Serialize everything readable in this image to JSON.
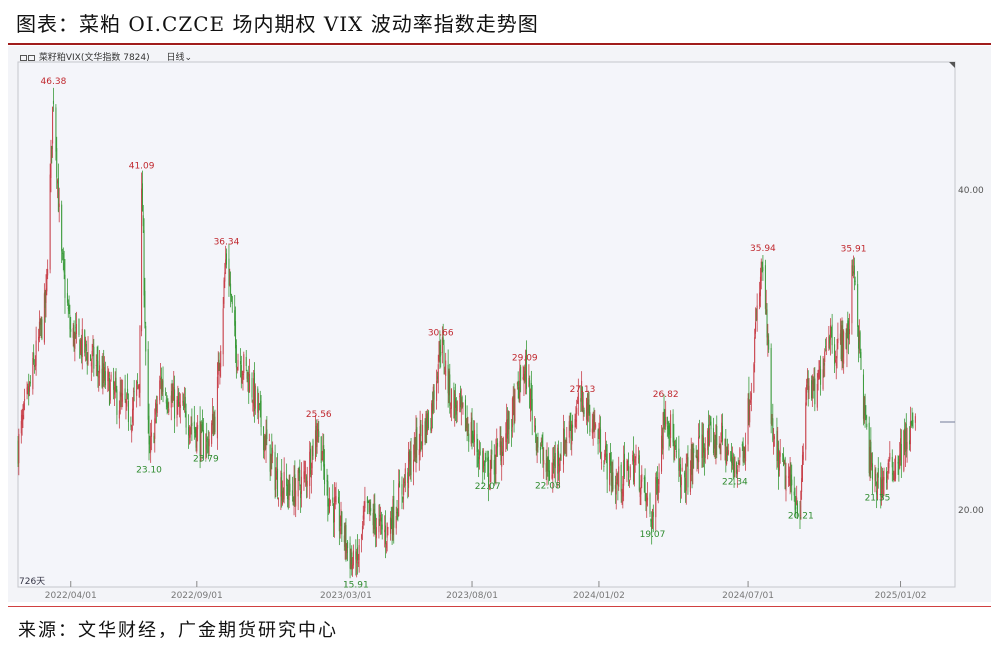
{
  "title": "图表：菜粕 OI.CZCE 场内期权  VIX 波动率指数走势图",
  "legend": {
    "name": "菜籽粕VIX(文华指数 7824)",
    "period": "日线",
    "dropdown_icon": "chevron-down-icon"
  },
  "source": "来源：文华财经，广金期货研究中心",
  "chart_data": {
    "type": "candlestick",
    "title": "",
    "ylabel": "",
    "xlabel": "",
    "ylim": [
      13.5,
      46.8
    ],
    "xlim": [
      "2022-01-27",
      "2025-01-22"
    ],
    "y_ticks": [
      20,
      40
    ],
    "y_tick_labels": [
      "20.00",
      "40.00"
    ],
    "x_ticks": [
      "2022/04/01",
      "2022/09/01",
      "2023/03/01",
      "2023/08/01",
      "2024/01/02",
      "2024/07/01",
      "2025/01/02"
    ],
    "day_count_label": "726天",
    "last_value_marker": 25.5,
    "grid": false,
    "colors": {
      "up": "#c8404a",
      "down": "#3a9a3a",
      "peak_label": "#c0282e",
      "trough_label": "#2e8b2e"
    },
    "path": [
      [
        "2022-01-27",
        24
      ],
      [
        "2022-02-10",
        27.5
      ],
      [
        "2022-03-02",
        33
      ],
      [
        "2022-03-11",
        46.38
      ],
      [
        "2022-03-20",
        36
      ],
      [
        "2022-04-01",
        31
      ],
      [
        "2022-04-19",
        30
      ],
      [
        "2022-05-07",
        28.5
      ],
      [
        "2022-05-26",
        27
      ],
      [
        "2022-06-13",
        26
      ],
      [
        "2022-06-23",
        28
      ],
      [
        "2022-06-26",
        41.09
      ],
      [
        "2022-07-01",
        30
      ],
      [
        "2022-07-05",
        23.1
      ],
      [
        "2022-07-19",
        28
      ],
      [
        "2022-08-06",
        26.5
      ],
      [
        "2022-08-25",
        25.5
      ],
      [
        "2022-09-12",
        23.79
      ],
      [
        "2022-09-24",
        26
      ],
      [
        "2022-10-07",
        36.34
      ],
      [
        "2022-10-18",
        30
      ],
      [
        "2022-11-05",
        28
      ],
      [
        "2022-11-20",
        25
      ],
      [
        "2022-12-06",
        22
      ],
      [
        "2022-12-24",
        21
      ],
      [
        "2023-01-11",
        22
      ],
      [
        "2023-01-27",
        25.56
      ],
      [
        "2023-02-04",
        21.5
      ],
      [
        "2023-02-23",
        19
      ],
      [
        "2023-03-13",
        15.91
      ],
      [
        "2023-03-25",
        20
      ],
      [
        "2023-04-18",
        18.5
      ],
      [
        "2023-05-06",
        21
      ],
      [
        "2023-05-25",
        24
      ],
      [
        "2023-06-12",
        26
      ],
      [
        "2023-06-24",
        30.66
      ],
      [
        "2023-07-06",
        27
      ],
      [
        "2023-07-30",
        25
      ],
      [
        "2023-08-20",
        22.07
      ],
      [
        "2023-09-05",
        24
      ],
      [
        "2023-09-17",
        25.5
      ],
      [
        "2023-10-04",
        29.09
      ],
      [
        "2023-10-17",
        25
      ],
      [
        "2023-11-01",
        22.08
      ],
      [
        "2023-11-23",
        24.5
      ],
      [
        "2023-12-13",
        27.13
      ],
      [
        "2023-12-29",
        25
      ],
      [
        "2024-01-22",
        21.5
      ],
      [
        "2024-02-16",
        23
      ],
      [
        "2024-03-07",
        19.07
      ],
      [
        "2024-03-23",
        26.82
      ],
      [
        "2024-04-10",
        21.5
      ],
      [
        "2024-05-05",
        24
      ],
      [
        "2024-05-29",
        24.5
      ],
      [
        "2024-06-15",
        22.34
      ],
      [
        "2024-06-28",
        24.5
      ],
      [
        "2024-07-19",
        35.94
      ],
      [
        "2024-07-31",
        24
      ],
      [
        "2024-08-16",
        22
      ],
      [
        "2024-09-03",
        20.21
      ],
      [
        "2024-09-10",
        28
      ],
      [
        "2024-09-21",
        27
      ],
      [
        "2024-10-07",
        31.5
      ],
      [
        "2024-10-15",
        30
      ],
      [
        "2024-10-31",
        31
      ],
      [
        "2024-11-06",
        35.91
      ],
      [
        "2024-11-17",
        27
      ],
      [
        "2024-11-27",
        22.5
      ],
      [
        "2024-12-05",
        21.35
      ],
      [
        "2024-12-27",
        23
      ],
      [
        "2025-01-20",
        25.5
      ]
    ],
    "annotations": [
      {
        "date": "2022-03-11",
        "value": 46.38,
        "label": "46.38",
        "kind": "peak"
      },
      {
        "date": "2022-06-26",
        "value": 41.09,
        "label": "41.09",
        "kind": "peak"
      },
      {
        "date": "2022-07-05",
        "value": 23.1,
        "label": "23.10",
        "kind": "trough"
      },
      {
        "date": "2022-09-12",
        "value": 23.79,
        "label": "23.79",
        "kind": "trough"
      },
      {
        "date": "2022-10-07",
        "value": 36.34,
        "label": "36.34",
        "kind": "peak"
      },
      {
        "date": "2023-01-27",
        "value": 25.56,
        "label": "25.56",
        "kind": "peak"
      },
      {
        "date": "2023-03-13",
        "value": 15.91,
        "label": "15.91",
        "kind": "trough"
      },
      {
        "date": "2023-06-24",
        "value": 30.66,
        "label": "30.66",
        "kind": "peak"
      },
      {
        "date": "2023-08-20",
        "value": 22.07,
        "label": "22.07",
        "kind": "trough"
      },
      {
        "date": "2023-10-04",
        "value": 29.09,
        "label": "29.09",
        "kind": "peak"
      },
      {
        "date": "2023-11-01",
        "value": 22.08,
        "label": "22.08",
        "kind": "trough"
      },
      {
        "date": "2023-12-13",
        "value": 27.13,
        "label": "27.13",
        "kind": "peak"
      },
      {
        "date": "2024-03-07",
        "value": 19.07,
        "label": "19.07",
        "kind": "trough"
      },
      {
        "date": "2024-03-23",
        "value": 26.82,
        "label": "26.82",
        "kind": "peak"
      },
      {
        "date": "2024-06-15",
        "value": 22.34,
        "label": "22.34",
        "kind": "trough"
      },
      {
        "date": "2024-07-19",
        "value": 35.94,
        "label": "35.94",
        "kind": "peak"
      },
      {
        "date": "2024-09-03",
        "value": 20.21,
        "label": "20.21",
        "kind": "trough"
      },
      {
        "date": "2024-11-06",
        "value": 35.91,
        "label": "35.91",
        "kind": "peak"
      },
      {
        "date": "2024-12-05",
        "value": 21.35,
        "label": "21.35",
        "kind": "trough"
      }
    ]
  }
}
